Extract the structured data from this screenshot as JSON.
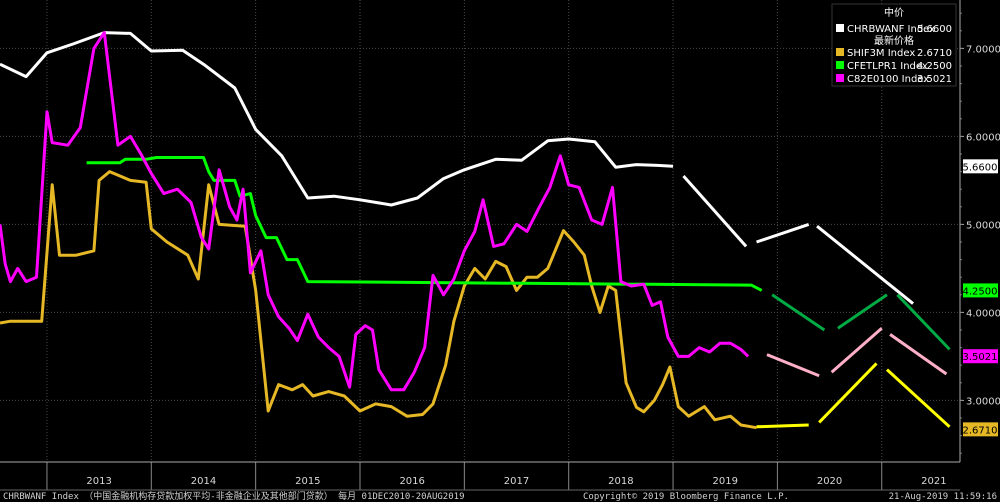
{
  "chart_data": {
    "type": "line",
    "title": "",
    "xlabel": "",
    "ylabel": "",
    "ylim": [
      2.3,
      7.55
    ],
    "xlim": [
      2012.55,
      2021.75
    ],
    "x_ticks": [
      "2013",
      "2014",
      "2015",
      "2016",
      "2017",
      "2018",
      "2019",
      "2020",
      "2021"
    ],
    "y_ticks": [
      "3.0000",
      "4.0000",
      "5.0000",
      "6.0000",
      "7.0000"
    ],
    "grid": true,
    "legend": {
      "position": "top-right",
      "header_1": "中价",
      "header_2": "最新价格"
    },
    "series": [
      {
        "name": "CHRBWANF Index",
        "last_value": "5.6600",
        "color": "#ffffff",
        "points": [
          [
            2012.55,
            6.82
          ],
          [
            2012.8,
            6.68
          ],
          [
            2013.0,
            6.95
          ],
          [
            2013.25,
            7.05
          ],
          [
            2013.55,
            7.18
          ],
          [
            2013.8,
            7.17
          ],
          [
            2014.0,
            6.97
          ],
          [
            2014.3,
            6.98
          ],
          [
            2014.5,
            6.82
          ],
          [
            2014.8,
            6.55
          ],
          [
            2015.0,
            6.08
          ],
          [
            2015.25,
            5.78
          ],
          [
            2015.5,
            5.3
          ],
          [
            2015.75,
            5.32
          ],
          [
            2016.0,
            5.28
          ],
          [
            2016.3,
            5.22
          ],
          [
            2016.55,
            5.3
          ],
          [
            2016.8,
            5.52
          ],
          [
            2017.0,
            5.62
          ],
          [
            2017.3,
            5.74
          ],
          [
            2017.55,
            5.73
          ],
          [
            2017.8,
            5.95
          ],
          [
            2018.0,
            5.97
          ],
          [
            2018.25,
            5.94
          ],
          [
            2018.45,
            5.65
          ],
          [
            2018.65,
            5.68
          ],
          [
            2018.85,
            5.67
          ],
          [
            2019.0,
            5.66
          ]
        ],
        "forecast": [
          [
            [
              2019.1,
              5.55
            ],
            [
              2019.7,
              4.75
            ]
          ],
          [
            [
              2019.8,
              4.8
            ],
            [
              2020.3,
              5.0
            ]
          ],
          [
            [
              2020.38,
              4.98
            ],
            [
              2021.3,
              4.1
            ]
          ]
        ],
        "forecast_color": "#ffffff"
      },
      {
        "name": "SHIF3M Index",
        "last_value": "2.6710",
        "color": "#e6b826",
        "points": [
          [
            2012.55,
            3.88
          ],
          [
            2012.65,
            3.9
          ],
          [
            2012.95,
            3.9
          ],
          [
            2013.05,
            5.45
          ],
          [
            2013.12,
            4.65
          ],
          [
            2013.28,
            4.65
          ],
          [
            2013.45,
            4.7
          ],
          [
            2013.5,
            5.5
          ],
          [
            2013.6,
            5.6
          ],
          [
            2013.8,
            5.5
          ],
          [
            2013.95,
            5.48
          ],
          [
            2014.0,
            4.95
          ],
          [
            2014.15,
            4.8
          ],
          [
            2014.35,
            4.65
          ],
          [
            2014.45,
            4.38
          ],
          [
            2014.55,
            5.45
          ],
          [
            2014.65,
            5.0
          ],
          [
            2014.9,
            4.98
          ],
          [
            2015.0,
            4.25
          ],
          [
            2015.12,
            2.88
          ],
          [
            2015.22,
            3.18
          ],
          [
            2015.35,
            3.12
          ],
          [
            2015.45,
            3.18
          ],
          [
            2015.55,
            3.05
          ],
          [
            2015.7,
            3.1
          ],
          [
            2015.85,
            3.05
          ],
          [
            2016.0,
            2.88
          ],
          [
            2016.15,
            2.96
          ],
          [
            2016.3,
            2.93
          ],
          [
            2016.45,
            2.82
          ],
          [
            2016.6,
            2.84
          ],
          [
            2016.7,
            2.96
          ],
          [
            2016.82,
            3.4
          ],
          [
            2016.9,
            3.9
          ],
          [
            2017.0,
            4.3
          ],
          [
            2017.1,
            4.5
          ],
          [
            2017.2,
            4.38
          ],
          [
            2017.3,
            4.58
          ],
          [
            2017.4,
            4.52
          ],
          [
            2017.5,
            4.25
          ],
          [
            2017.6,
            4.4
          ],
          [
            2017.7,
            4.4
          ],
          [
            2017.8,
            4.5
          ],
          [
            2017.95,
            4.93
          ],
          [
            2018.05,
            4.8
          ],
          [
            2018.15,
            4.65
          ],
          [
            2018.22,
            4.3
          ],
          [
            2018.3,
            4.0
          ],
          [
            2018.38,
            4.3
          ],
          [
            2018.45,
            4.25
          ],
          [
            2018.55,
            3.2
          ],
          [
            2018.65,
            2.92
          ],
          [
            2018.72,
            2.87
          ],
          [
            2018.82,
            3.0
          ],
          [
            2018.9,
            3.18
          ],
          [
            2018.97,
            3.38
          ],
          [
            2019.05,
            2.93
          ],
          [
            2019.15,
            2.82
          ],
          [
            2019.3,
            2.93
          ],
          [
            2019.4,
            2.78
          ],
          [
            2019.55,
            2.82
          ],
          [
            2019.65,
            2.72
          ],
          [
            2019.8,
            2.69
          ]
        ],
        "forecast": [
          [
            [
              2019.8,
              2.7
            ],
            [
              2020.3,
              2.72
            ]
          ],
          [
            [
              2020.4,
              2.75
            ],
            [
              2020.95,
              3.42
            ]
          ],
          [
            [
              2021.05,
              3.35
            ],
            [
              2021.65,
              2.7
            ]
          ]
        ],
        "forecast_color": "#ffff00"
      },
      {
        "name": "CFETLPR1 Index",
        "last_value": "4.2500",
        "color": "#00ff00",
        "points": [
          [
            2013.38,
            5.7
          ],
          [
            2013.7,
            5.7
          ],
          [
            2013.75,
            5.74
          ],
          [
            2013.95,
            5.74
          ],
          [
            2014.05,
            5.76
          ],
          [
            2014.5,
            5.76
          ],
          [
            2014.55,
            5.6
          ],
          [
            2014.6,
            5.5
          ],
          [
            2014.8,
            5.5
          ],
          [
            2014.85,
            5.32
          ],
          [
            2014.95,
            5.35
          ],
          [
            2015.0,
            5.1
          ],
          [
            2015.1,
            4.85
          ],
          [
            2015.2,
            4.85
          ],
          [
            2015.3,
            4.6
          ],
          [
            2015.4,
            4.6
          ],
          [
            2015.5,
            4.35
          ],
          [
            2019.75,
            4.31
          ],
          [
            2019.85,
            4.25
          ]
        ],
        "forecast": [
          [
            [
              2019.95,
              4.2
            ],
            [
              2020.45,
              3.8
            ]
          ],
          [
            [
              2020.58,
              3.82
            ],
            [
              2021.05,
              4.2
            ]
          ],
          [
            [
              2021.15,
              4.2
            ],
            [
              2021.65,
              3.58
            ]
          ]
        ],
        "forecast_color": "#00aa44"
      },
      {
        "name": "C82E0100 Index",
        "last_value": "3.5021",
        "color": "#ff00ff",
        "points": [
          [
            2012.55,
            5.0
          ],
          [
            2012.6,
            4.55
          ],
          [
            2012.65,
            4.35
          ],
          [
            2012.72,
            4.5
          ],
          [
            2012.8,
            4.35
          ],
          [
            2012.9,
            4.4
          ],
          [
            2013.0,
            6.28
          ],
          [
            2013.05,
            5.93
          ],
          [
            2013.2,
            5.9
          ],
          [
            2013.32,
            6.1
          ],
          [
            2013.45,
            7.0
          ],
          [
            2013.55,
            7.18
          ],
          [
            2013.68,
            5.9
          ],
          [
            2013.8,
            6.0
          ],
          [
            2013.9,
            5.8
          ],
          [
            2014.0,
            5.58
          ],
          [
            2014.12,
            5.35
          ],
          [
            2014.25,
            5.4
          ],
          [
            2014.38,
            5.25
          ],
          [
            2014.48,
            4.85
          ],
          [
            2014.55,
            4.72
          ],
          [
            2014.65,
            5.62
          ],
          [
            2014.75,
            5.2
          ],
          [
            2014.82,
            5.05
          ],
          [
            2014.88,
            5.4
          ],
          [
            2014.95,
            4.45
          ],
          [
            2015.05,
            4.7
          ],
          [
            2015.12,
            4.2
          ],
          [
            2015.22,
            3.95
          ],
          [
            2015.32,
            3.82
          ],
          [
            2015.4,
            3.68
          ],
          [
            2015.5,
            3.98
          ],
          [
            2015.6,
            3.72
          ],
          [
            2015.7,
            3.6
          ],
          [
            2015.8,
            3.5
          ],
          [
            2015.9,
            3.15
          ],
          [
            2015.96,
            3.75
          ],
          [
            2016.05,
            3.85
          ],
          [
            2016.12,
            3.8
          ],
          [
            2016.18,
            3.35
          ],
          [
            2016.3,
            3.12
          ],
          [
            2016.42,
            3.12
          ],
          [
            2016.52,
            3.32
          ],
          [
            2016.62,
            3.6
          ],
          [
            2016.7,
            4.42
          ],
          [
            2016.8,
            4.2
          ],
          [
            2016.9,
            4.38
          ],
          [
            2017.0,
            4.7
          ],
          [
            2017.1,
            4.92
          ],
          [
            2017.18,
            5.28
          ],
          [
            2017.28,
            4.75
          ],
          [
            2017.38,
            4.78
          ],
          [
            2017.5,
            5.0
          ],
          [
            2017.6,
            4.92
          ],
          [
            2017.72,
            5.2
          ],
          [
            2017.82,
            5.42
          ],
          [
            2017.92,
            5.78
          ],
          [
            2018.0,
            5.45
          ],
          [
            2018.1,
            5.42
          ],
          [
            2018.22,
            5.05
          ],
          [
            2018.32,
            5.0
          ],
          [
            2018.42,
            5.42
          ],
          [
            2018.5,
            4.35
          ],
          [
            2018.6,
            4.3
          ],
          [
            2018.72,
            4.32
          ],
          [
            2018.8,
            4.08
          ],
          [
            2018.88,
            4.12
          ],
          [
            2018.95,
            3.72
          ],
          [
            2019.05,
            3.5
          ],
          [
            2019.15,
            3.5
          ],
          [
            2019.25,
            3.6
          ],
          [
            2019.35,
            3.55
          ],
          [
            2019.45,
            3.65
          ],
          [
            2019.55,
            3.65
          ],
          [
            2019.65,
            3.58
          ],
          [
            2019.72,
            3.5
          ]
        ],
        "forecast": [
          [
            [
              2019.9,
              3.52
            ],
            [
              2020.4,
              3.28
            ]
          ],
          [
            [
              2020.52,
              3.32
            ],
            [
              2021.0,
              3.82
            ]
          ],
          [
            [
              2021.08,
              3.75
            ],
            [
              2021.62,
              3.3
            ]
          ]
        ],
        "forecast_color": "#ffb0c8"
      }
    ]
  },
  "footer": {
    "left": "CHRBWANF Index （中国金融机构存贷款加权平均-非金融企业及其他部门贷款） 每月 01DEC2010-20AUG2019",
    "center": "Copyright© 2019 Bloomberg Finance L.P.",
    "right": "21-Aug-2019 11:59:16"
  }
}
